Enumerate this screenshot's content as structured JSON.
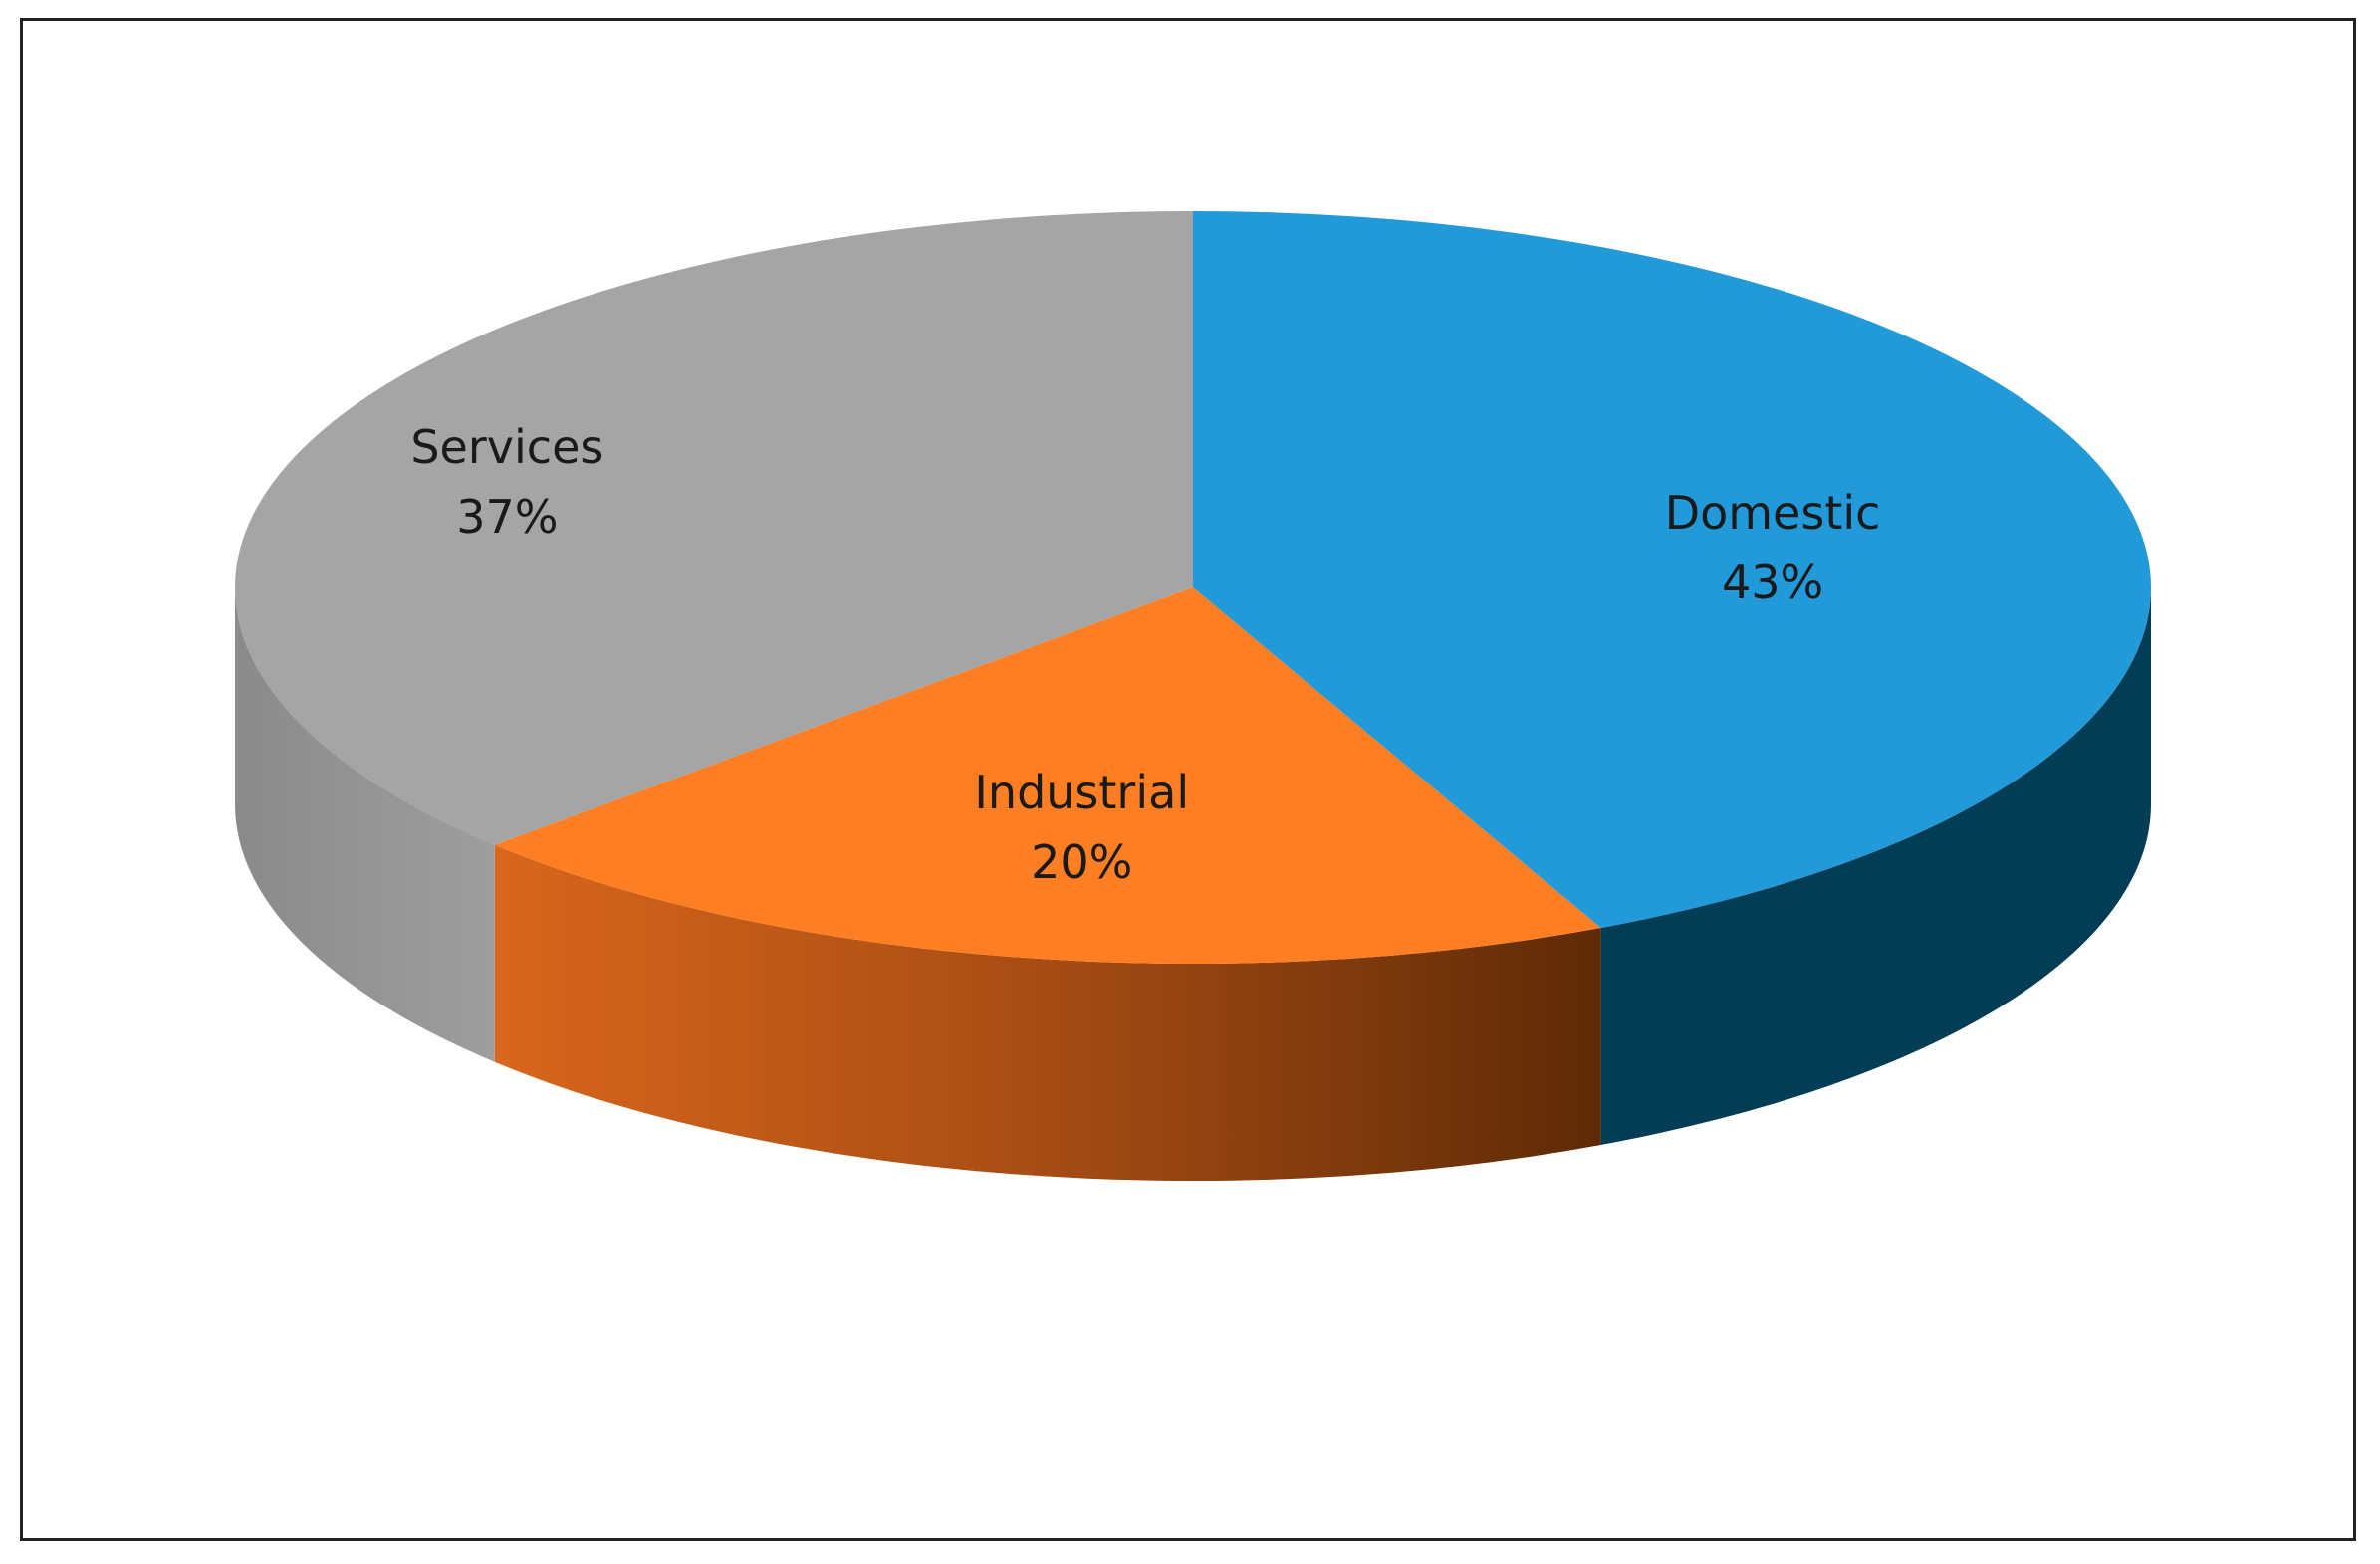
{
  "chart_data": {
    "type": "pie",
    "style": "3d",
    "title": "",
    "slices": [
      {
        "label": "Domestic",
        "value": 43,
        "display": "43%",
        "color": "#2299d8",
        "side_color": "#033c55"
      },
      {
        "label": "Industrial",
        "value": 20,
        "display": "20%",
        "color": "#fd7e23",
        "side_color": "#bd5514"
      },
      {
        "label": "Services",
        "value": 37,
        "display": "37%",
        "color": "#a5a5a5",
        "side_color": "#8c8c8c"
      }
    ],
    "legend": "none",
    "data_labels": "inside"
  }
}
